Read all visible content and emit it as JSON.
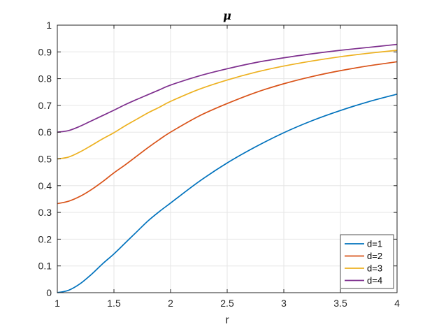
{
  "chart_data": {
    "type": "line",
    "title": "μ",
    "xlabel": "r",
    "ylabel": "",
    "xlim": [
      1,
      4
    ],
    "ylim": [
      0,
      1
    ],
    "grid": true,
    "legend_position": "bottom-right",
    "x_ticks": [
      "1",
      "1.5",
      "2",
      "2.5",
      "3",
      "3.5",
      "4"
    ],
    "y_ticks": [
      "0",
      "0.1",
      "0.2",
      "0.3",
      "0.4",
      "0.5",
      "0.6",
      "0.7",
      "0.8",
      "0.9",
      "1"
    ],
    "x": [
      1.0,
      1.1,
      1.2,
      1.3,
      1.4,
      1.5,
      1.6,
      1.7,
      1.8,
      1.9,
      2.0,
      2.25,
      2.5,
      2.75,
      3.0,
      3.25,
      3.5,
      3.75,
      4.0
    ],
    "series": [
      {
        "name": "d=1",
        "color": "#0072BD",
        "values": [
          0.0,
          0.009,
          0.033,
          0.068,
          0.108,
          0.145,
          0.186,
          0.227,
          0.268,
          0.303,
          0.335,
          0.415,
          0.485,
          0.545,
          0.598,
          0.643,
          0.681,
          0.714,
          0.742
        ]
      },
      {
        "name": "d=2",
        "color": "#D95319",
        "values": [
          0.333,
          0.342,
          0.36,
          0.385,
          0.415,
          0.448,
          0.478,
          0.51,
          0.542,
          0.572,
          0.6,
          0.66,
          0.707,
          0.748,
          0.781,
          0.808,
          0.83,
          0.848,
          0.863
        ]
      },
      {
        "name": "d=3",
        "color": "#EDB120",
        "values": [
          0.5,
          0.507,
          0.526,
          0.55,
          0.575,
          0.598,
          0.624,
          0.648,
          0.672,
          0.693,
          0.715,
          0.76,
          0.795,
          0.824,
          0.847,
          0.866,
          0.882,
          0.895,
          0.906
        ]
      },
      {
        "name": "d=4",
        "color": "#7E2F8E",
        "values": [
          0.6,
          0.606,
          0.622,
          0.642,
          0.662,
          0.682,
          0.703,
          0.722,
          0.74,
          0.758,
          0.776,
          0.81,
          0.837,
          0.86,
          0.878,
          0.893,
          0.906,
          0.917,
          0.928
        ]
      }
    ]
  }
}
